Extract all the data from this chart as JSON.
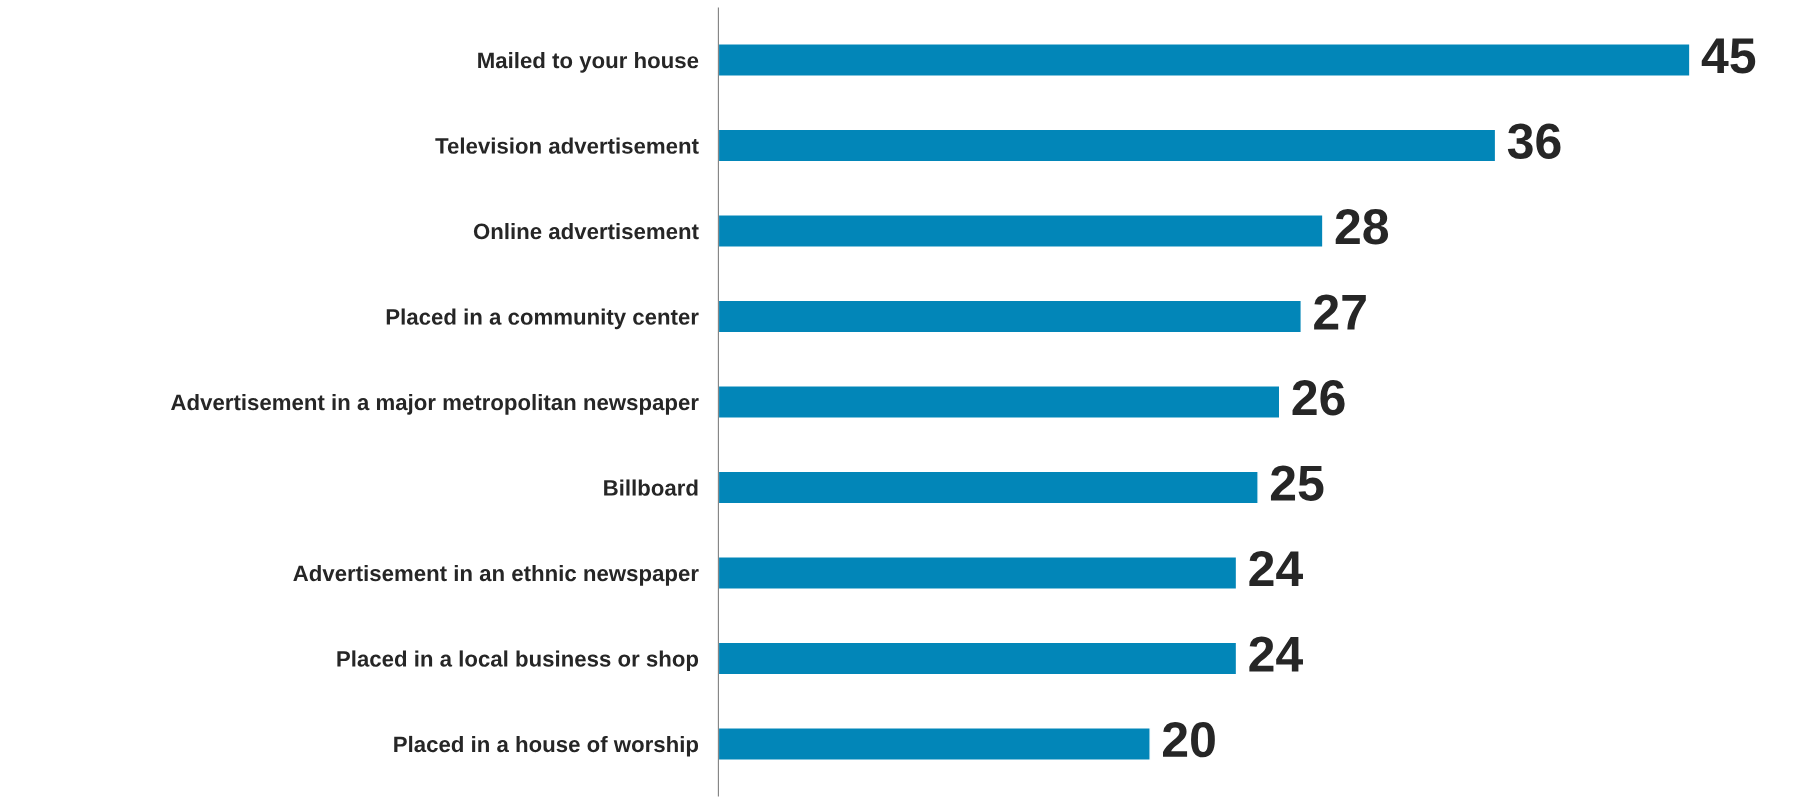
{
  "chart_data": {
    "type": "bar",
    "orientation": "horizontal",
    "data_labels": true,
    "grid": false,
    "legend": false,
    "color": "#0286b8",
    "categories": [
      "Mailed to your house",
      "Television advertisement",
      "Online advertisement",
      "Placed in a community center",
      "Advertisement in a major metropolitan newspaper",
      "Billboard",
      "Advertisement in an ethnic newspaper",
      "Placed in a local business or shop",
      "Placed in a house of worship"
    ],
    "values": [
      45,
      36,
      28,
      27,
      26,
      25,
      24,
      24,
      20
    ]
  }
}
